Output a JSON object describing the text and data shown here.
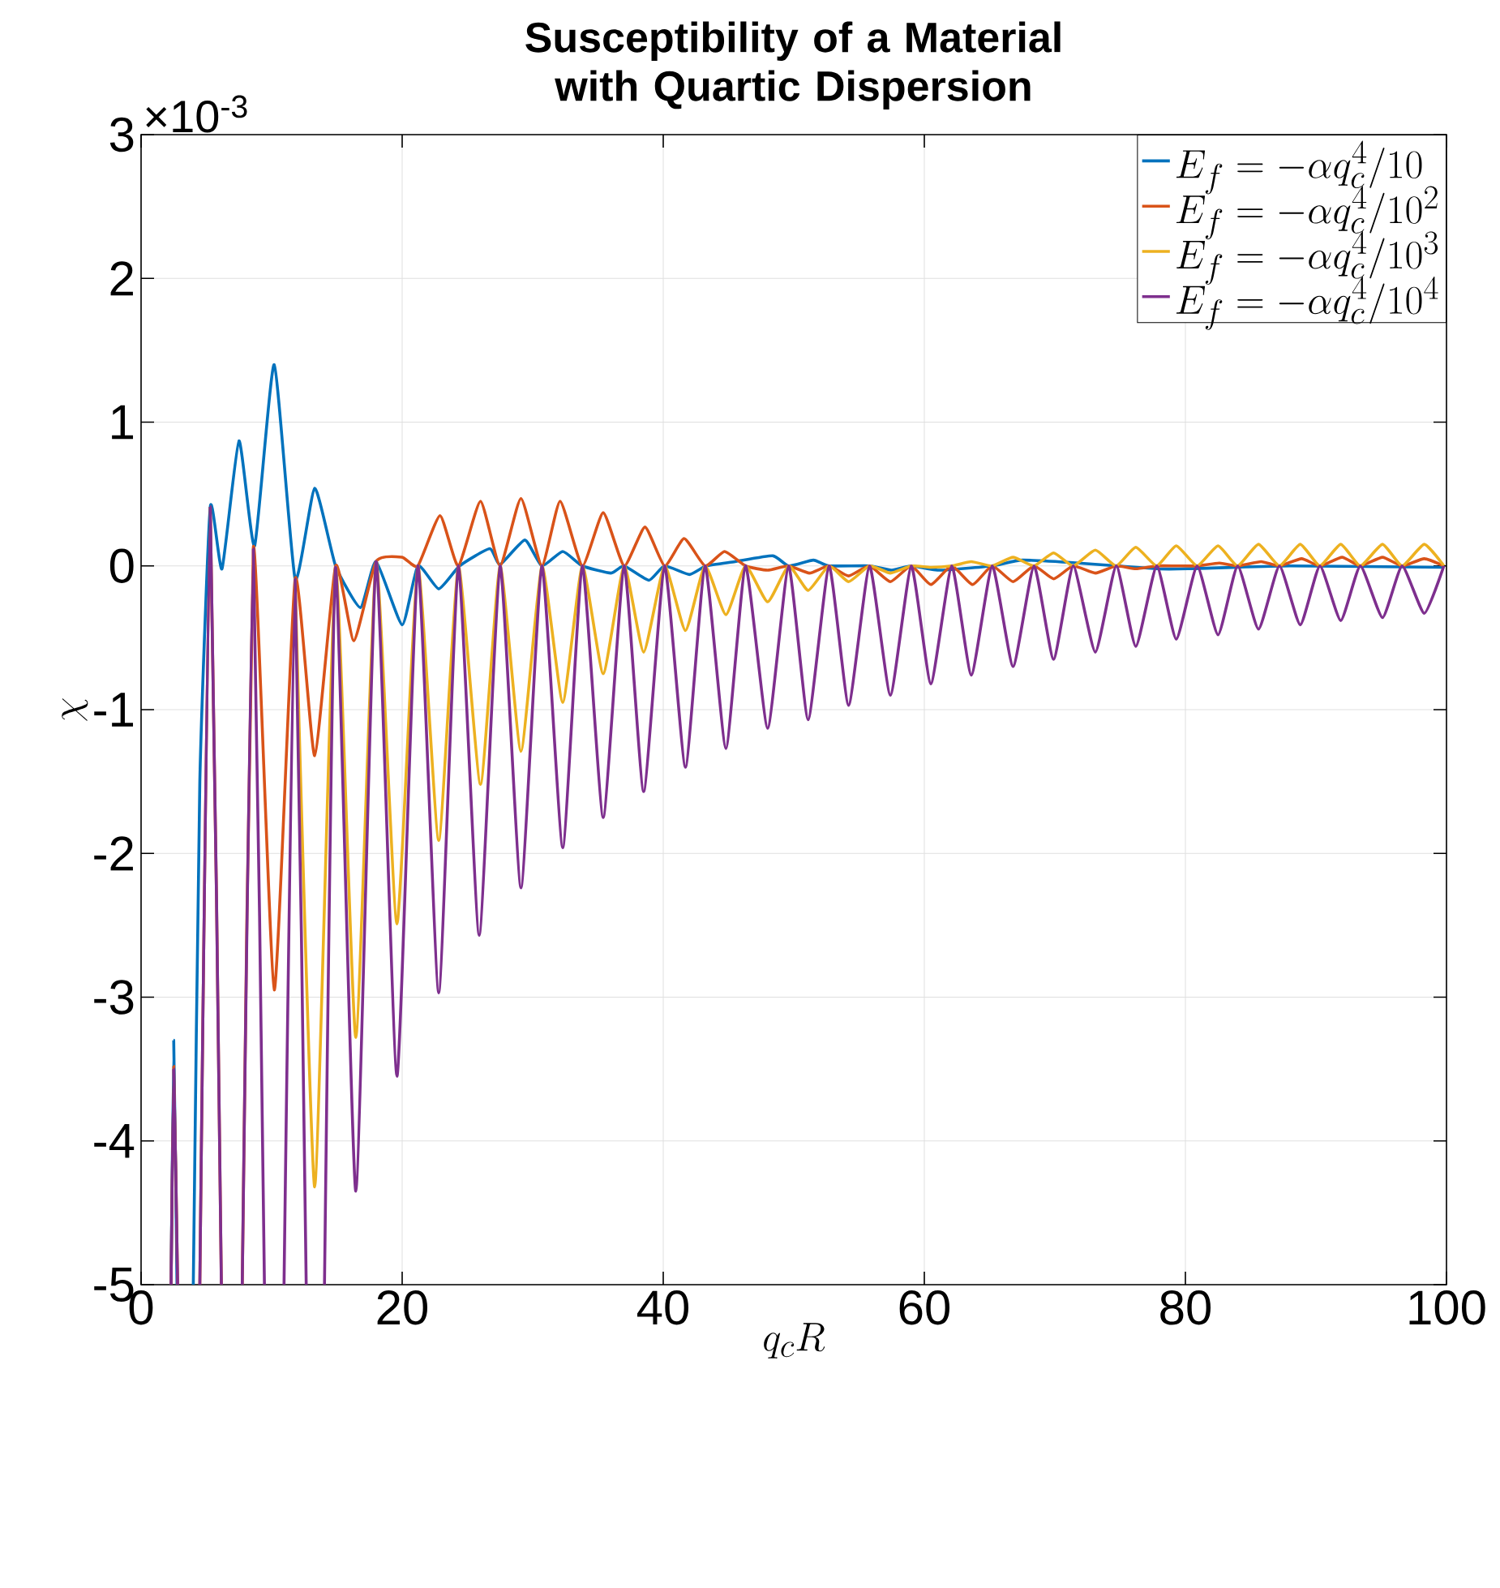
{
  "chart_data": {
    "type": "line",
    "title": "Susceptibility of a Material with Quartic Dispersion",
    "xlabel": "q_cR",
    "ylabel": "\\chi",
    "annotations": [
      "×10$^{-3}$"
    ],
    "xlim": [
      0,
      100
    ],
    "ylim": [
      -5,
      3
    ],
    "xticks": [
      0,
      20,
      40,
      60,
      80,
      100
    ],
    "yticks": [
      -5,
      -4,
      -3,
      -2,
      -1,
      0,
      1,
      2,
      3
    ],
    "grid": true,
    "legend": "top right",
    "series": [
      {
        "name": "E_f = -\\alpha q_c^4/10",
        "color": "#0072bd",
        "x": [
          2.3,
          2.5,
          2.75,
          3.4,
          4.0,
          4.5,
          5.3,
          6.2,
          7.5,
          8.7,
          10.2,
          11.8,
          13.3,
          14.9,
          16.8,
          18.0,
          20.0,
          21.2,
          22.8,
          24.4,
          26.7,
          27.5,
          29.4,
          30.7,
          32.3,
          33.8,
          36.0,
          37.0,
          38.9,
          40.1,
          42.0,
          43.3,
          45.5,
          48.4,
          49.6,
          51.5,
          52.7,
          55.8,
          57.5,
          59.0,
          61.2,
          65.2,
          67.5,
          71.8,
          77.8,
          80.2,
          88.0,
          99.8
        ],
        "values": [
          -5,
          -3.3,
          -5,
          null,
          -5,
          -1.5,
          0.41,
          -0.02,
          0.87,
          0.14,
          1.4,
          -0.09,
          0.54,
          0,
          -0.29,
          0.03,
          -0.41,
          0,
          -0.16,
          0,
          0.12,
          0.01,
          0.18,
          0,
          0.1,
          0,
          -0.05,
          0,
          -0.1,
          0,
          -0.06,
          0,
          0.03,
          0.07,
          0,
          0.04,
          0,
          0,
          -0.03,
          0,
          -0.03,
          0,
          0.04,
          0.02,
          -0.02,
          -0.02,
          0,
          -0.01
        ]
      },
      {
        "name": "E_f = -\\alpha q_c^4/10^2",
        "color": "#d95319",
        "x": [
          2.3,
          2.5,
          2.8,
          3.5,
          4.5,
          5.3,
          6.15,
          6.9,
          7.75,
          8.6,
          10.2,
          11.8,
          13.3,
          14.9,
          16.3,
          18.0,
          20.0,
          21.2,
          22.9,
          24.3,
          26.0,
          27.5,
          29.1,
          30.7,
          32.1,
          33.8,
          35.4,
          37.0,
          38.6,
          40.1,
          41.6,
          43.2,
          44.7,
          46.3,
          48.0,
          49.6,
          51.2,
          52.7,
          54.2,
          55.8,
          57.4,
          59.0,
          60.5,
          62.1,
          63.7,
          65.2,
          66.8,
          68.4,
          69.9,
          71.4,
          73.1,
          74.7,
          76.2,
          77.8,
          79.3,
          80.9,
          82.6,
          84.0,
          85.8,
          87.2,
          88.9,
          90.3,
          92.0,
          93.4,
          95.1,
          96.6,
          98.3,
          99.8
        ],
        "values": [
          -5,
          -3.48,
          -5,
          null,
          -5,
          0.41,
          -5,
          null,
          -5,
          0.13,
          -2.95,
          -0.09,
          -1.32,
          0,
          -0.52,
          0.03,
          0.06,
          0,
          0.35,
          0,
          0.45,
          0,
          0.47,
          0,
          0.45,
          0,
          0.37,
          0,
          0.27,
          0,
          0.19,
          0,
          0.1,
          0,
          -0.03,
          0,
          -0.05,
          0,
          -0.07,
          0,
          -0.11,
          0,
          -0.13,
          0,
          -0.13,
          0,
          -0.11,
          0,
          -0.09,
          0,
          -0.05,
          0,
          -0.02,
          0,
          0,
          0,
          0.02,
          0,
          0.03,
          0,
          0.05,
          0,
          0.06,
          0,
          0.06,
          0,
          0.05,
          0
        ]
      },
      {
        "name": "E_f = -\\alpha q_c^4/10^3",
        "color": "#edb120",
        "x": [
          11.8,
          13.3,
          14.9,
          16.45,
          18.0,
          19.6,
          21.2,
          22.8,
          24.3,
          26.0,
          27.5,
          29.1,
          30.7,
          32.3,
          33.8,
          35.4,
          37.0,
          38.5,
          40.1,
          41.7,
          43.2,
          44.8,
          46.3,
          48.0,
          49.6,
          51.1,
          52.7,
          54.2,
          55.8,
          57.4,
          59.0,
          60.5,
          62.1,
          63.6,
          65.2,
          66.8,
          68.4,
          69.9,
          71.4,
          73.1,
          74.7,
          76.2,
          77.8,
          79.3,
          80.9,
          82.5,
          84.0,
          85.6,
          87.2,
          88.8,
          90.3,
          91.9,
          93.4,
          95.1,
          96.6,
          98.3,
          99.8
        ],
        "values": [
          -0.09,
          -4.32,
          -0.01,
          -3.28,
          0.03,
          -2.49,
          0,
          -1.91,
          0,
          -1.52,
          0,
          -1.29,
          0,
          -0.95,
          0,
          -0.75,
          0,
          -0.6,
          0,
          -0.45,
          0,
          -0.34,
          0,
          -0.25,
          0,
          -0.17,
          0,
          -0.11,
          0,
          -0.05,
          0,
          -0.01,
          0,
          0.03,
          0,
          0.06,
          0,
          0.09,
          0,
          0.11,
          0,
          0.13,
          0,
          0.14,
          0,
          0.14,
          0,
          0.15,
          0,
          0.15,
          0,
          0.15,
          0,
          0.15,
          0,
          0.15,
          0
        ]
      },
      {
        "name": "E_f = -\\alpha q_c^4/10^4",
        "color": "#7e2f8e",
        "x": [
          2.3,
          2.5,
          2.8,
          3.5,
          4.5,
          5.3,
          6.15,
          6.9,
          7.75,
          8.6,
          9.45,
          10.2,
          10.95,
          11.8,
          12.65,
          13.35,
          14.05,
          14.9,
          16.45,
          18.0,
          19.6,
          21.2,
          22.8,
          24.3,
          25.9,
          27.5,
          29.1,
          30.7,
          32.3,
          33.8,
          35.4,
          37.0,
          38.5,
          40.1,
          41.7,
          43.2,
          44.8,
          46.3,
          48.0,
          49.6,
          51.1,
          52.7,
          54.2,
          55.8,
          57.4,
          59.0,
          60.5,
          62.1,
          63.6,
          65.2,
          66.8,
          68.4,
          69.9,
          71.4,
          73.1,
          74.7,
          76.2,
          77.8,
          79.3,
          80.9,
          82.5,
          84.0,
          85.6,
          87.2,
          88.8,
          90.3,
          91.9,
          93.4,
          95.1,
          96.6,
          98.3,
          99.8
        ],
        "values": [
          -5,
          -3.5,
          -5,
          null,
          -5,
          0.41,
          -5,
          null,
          -5,
          0.12,
          -5,
          null,
          -5,
          -0.09,
          -5,
          null,
          -5,
          -0.01,
          -4.35,
          0.03,
          -3.55,
          0,
          -2.97,
          0,
          -2.57,
          0,
          -2.24,
          0,
          -1.96,
          0,
          -1.75,
          0,
          -1.57,
          0,
          -1.4,
          0,
          -1.27,
          0,
          -1.13,
          0,
          -1.07,
          0,
          -0.97,
          0,
          -0.9,
          0,
          -0.82,
          0,
          -0.76,
          0,
          -0.7,
          0,
          -0.65,
          0,
          -0.6,
          0,
          -0.56,
          0,
          -0.51,
          0,
          -0.48,
          0,
          -0.44,
          0,
          -0.41,
          0,
          -0.38,
          0,
          -0.36,
          0,
          -0.33,
          0
        ]
      }
    ]
  }
}
